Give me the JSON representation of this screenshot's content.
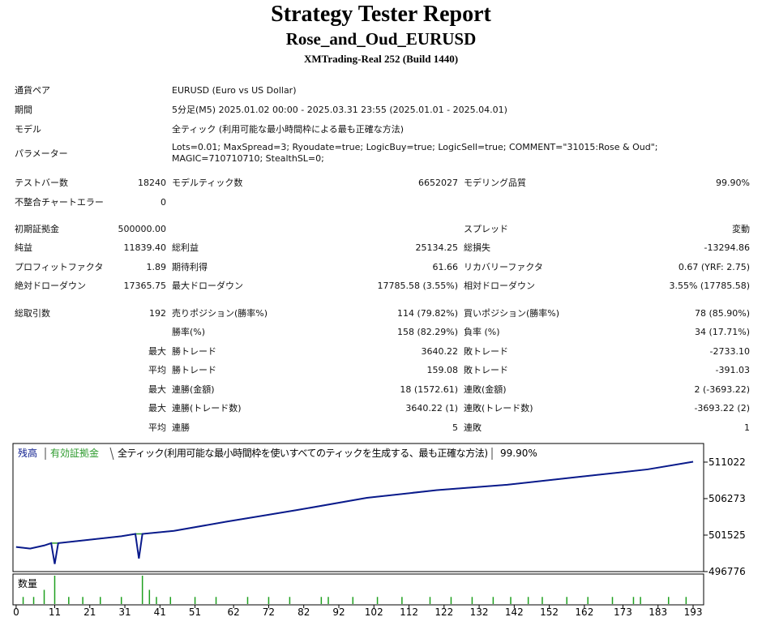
{
  "header": {
    "title": "Strategy Tester Report",
    "subtitle": "Rose_and_Oud_EURUSD",
    "build": "XMTrading-Real 252 (Build 1440)"
  },
  "table": {
    "rows": [
      [
        "通貨ペア",
        "EURUSD (Euro vs US Dollar)"
      ],
      [
        "期間",
        "5分足(M5) 2025.01.02 00:00 - 2025.03.31 23:55 (2025.01.01 - 2025.04.01)"
      ],
      [
        "モデル",
        "全ティック (利用可能な最小時間枠による最も正確な方法)"
      ],
      [
        "パラメーター",
        "Lots=0.01; MaxSpread=3; Ryoudate=true; LogicBuy=true; LogicSell=true; COMMENT=\"31015:Rose & Oud\"; MAGIC=710710710; StealthSL=0;"
      ],
      [
        "テストバー数",
        "18240",
        "モデルティック数",
        "6652027",
        "モデリング品質",
        "99.90%"
      ],
      [
        "不整合チャートエラー",
        "0",
        null,
        null,
        null,
        null
      ],
      [
        "初期証拠金",
        "500000.00",
        null,
        null,
        "スプレッド",
        "変動"
      ],
      [
        "純益",
        "11839.40",
        "総利益",
        "25134.25",
        "総損失",
        "-13294.86"
      ],
      [
        "プロフィットファクタ",
        "1.89",
        "期待利得",
        "61.66",
        "リカバリーファクタ",
        "0.67 (YRF: 2.75)"
      ],
      [
        "絶対ドローダウン",
        "17365.75",
        "最大ドローダウン",
        "17785.58 (3.55%)",
        "相対ドローダウン",
        "3.55% (17785.58)"
      ],
      [
        "総取引数",
        "192",
        "売りポジション(勝率%)",
        "114 (79.82%)",
        "買いポジション(勝率%)",
        "78 (85.90%)"
      ],
      [
        null,
        null,
        "勝率(%)",
        "158 (82.29%)",
        "負率 (%)",
        "34 (17.71%)"
      ],
      [
        null,
        "最大",
        "勝トレード",
        "3640.22",
        "敗トレード",
        "-2733.10"
      ],
      [
        null,
        "平均",
        "勝トレード",
        "159.08",
        "敗トレード",
        "-391.03"
      ],
      [
        null,
        "最大",
        "連勝(金額)",
        "18 (1572.61)",
        "連敗(金額)",
        "2 (-3693.22)"
      ],
      [
        null,
        "最大",
        "連勝(トレード数)",
        "3640.22 (1)",
        "連敗(トレード数)",
        "-3693.22 (2)"
      ],
      [
        null,
        "平均",
        "連勝",
        "5",
        "連敗",
        "1"
      ]
    ]
  },
  "chart_data": {
    "type": "line",
    "model_label": "全ティック(利用可能な最小時間枠を使いすべてのティックを生成する、最も正確な方法)",
    "quality": "99.90%",
    "x": [
      0,
      4,
      8,
      10,
      11,
      12,
      20,
      30,
      34,
      35,
      36,
      45,
      60,
      80,
      100,
      120,
      140,
      160,
      180,
      193
    ],
    "series": [
      {
        "name": "有効証拠金",
        "color": "#2e9b2e",
        "values": [
          499976,
          499776,
          500176,
          500476,
          500476,
          500476,
          500876,
          501376,
          501676,
          501676,
          501676,
          502076,
          503276,
          504776,
          506376,
          507376,
          508076,
          509076,
          510076,
          511076
        ]
      },
      {
        "name": "残高",
        "color": "#0a1a8c",
        "values": [
          499976,
          499776,
          500176,
          500476,
          497776,
          500476,
          500876,
          501376,
          501676,
          498476,
          501676,
          502076,
          503276,
          504776,
          506376,
          507376,
          508076,
          509076,
          510076,
          511076
        ]
      }
    ],
    "xlim": [
      -0.9,
      196
    ],
    "ylim": [
      496776,
      513445
    ],
    "xticks": [
      0,
      11,
      21,
      31,
      41,
      51,
      62,
      72,
      82,
      92,
      102,
      112,
      122,
      132,
      142,
      152,
      162,
      173,
      183,
      193
    ],
    "yticks": [
      496776,
      501525,
      506273,
      511022
    ],
    "volume": {
      "label": "数量",
      "color": "#1fa01f",
      "x": [
        2,
        5,
        8,
        11,
        15,
        19,
        24,
        30,
        36,
        38,
        40,
        44,
        51,
        57,
        66,
        72,
        78,
        87,
        89,
        96,
        103,
        110,
        118,
        124,
        130,
        136,
        141,
        146,
        150,
        157,
        163,
        170,
        176,
        178,
        186,
        191
      ],
      "values": [
        0.01,
        0.01,
        0.02,
        0.04,
        0.01,
        0.01,
        0.01,
        0.01,
        0.04,
        0.02,
        0.01,
        0.01,
        0.01,
        0.01,
        0.01,
        0.01,
        0.01,
        0.01,
        0.01,
        0.01,
        0.01,
        0.01,
        0.01,
        0.01,
        0.01,
        0.01,
        0.01,
        0.01,
        0.01,
        0.01,
        0.01,
        0.01,
        0.01,
        0.01,
        0.01,
        0.01
      ],
      "ylim": [
        0,
        0.04
      ]
    }
  }
}
